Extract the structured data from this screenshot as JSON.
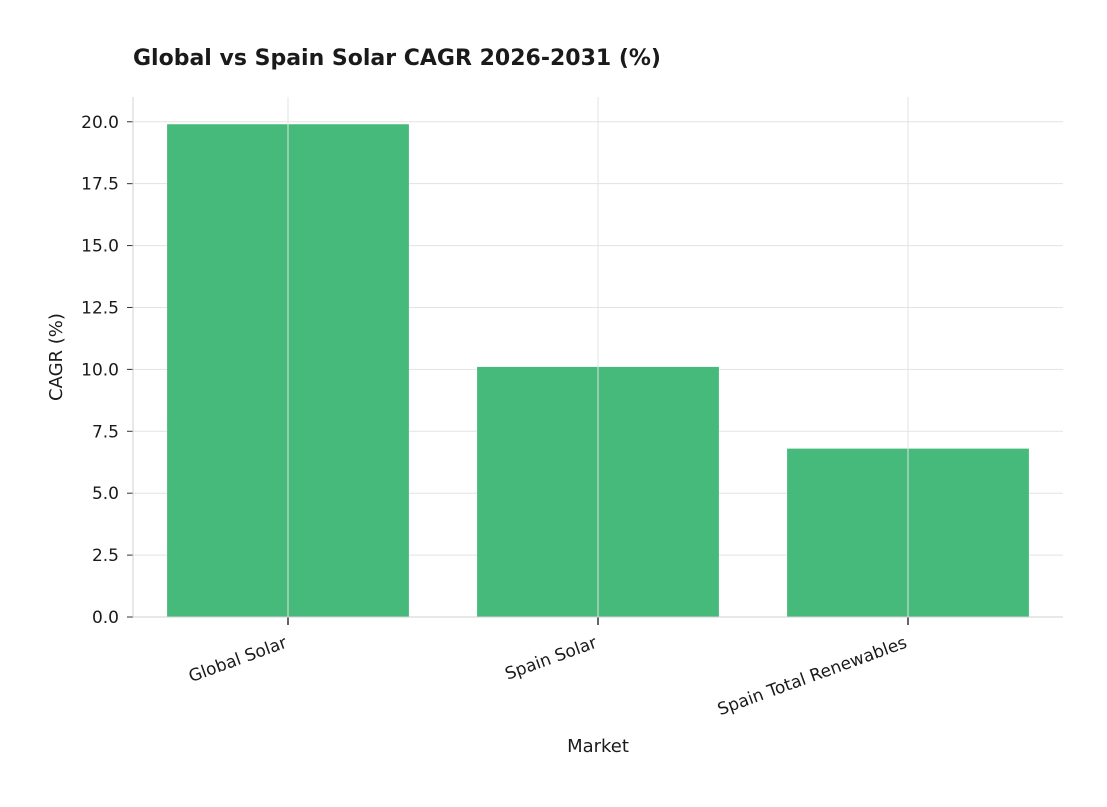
{
  "chart_data": {
    "type": "bar",
    "title": "Global vs Spain Solar CAGR 2026-2031 (%)",
    "xlabel": "Market",
    "ylabel": "CAGR (%)",
    "categories": [
      "Global Solar",
      "Spain Solar",
      "Spain Total Renewables"
    ],
    "values": [
      19.9,
      10.1,
      6.8
    ],
    "ylim": [
      0,
      21
    ],
    "yticks": [
      "0.0",
      "2.5",
      "5.0",
      "7.5",
      "10.0",
      "12.5",
      "15.0",
      "17.5",
      "20.0"
    ],
    "grid": true,
    "bar_color": "#46ba7a"
  }
}
